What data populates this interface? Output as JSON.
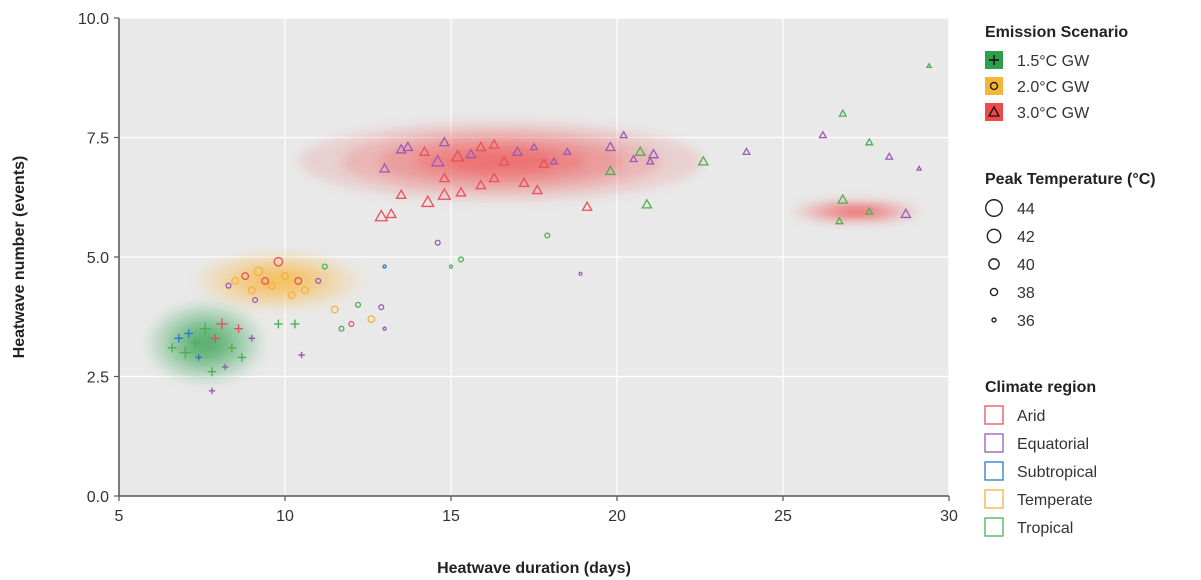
{
  "chart_data": {
    "type": "scatter",
    "xlabel": "Heatwave duration (days)",
    "ylabel": "Heatwave number (events)",
    "xlim": [
      5,
      30
    ],
    "ylim": [
      0,
      10
    ],
    "x_ticks": [
      "5",
      "10",
      "15",
      "20",
      "25",
      "30"
    ],
    "y_ticks": [
      "0.0",
      "2.5",
      "5.0",
      "7.5",
      "10.0"
    ],
    "x_tick_values": [
      5,
      10,
      15,
      20,
      25,
      30
    ],
    "y_tick_values": [
      0,
      2.5,
      5,
      7.5,
      10
    ],
    "grid": true,
    "legend": {
      "scenario_title": "Emission Scenario",
      "scenarios": [
        {
          "label": "1.5°C GW",
          "marker": "plus",
          "color": "#2e9e4a"
        },
        {
          "label": "2.0°C GW",
          "marker": "circle",
          "color": "#f7b538"
        },
        {
          "label": "3.0°C GW",
          "marker": "triangle",
          "color": "#ef4b4b"
        }
      ],
      "size_title": "Peak Temperature (°C)",
      "sizes": [
        {
          "label": "44",
          "value": 44
        },
        {
          "label": "42",
          "value": 42
        },
        {
          "label": "40",
          "value": 40
        },
        {
          "label": "38",
          "value": 38
        },
        {
          "label": "36",
          "value": 36
        }
      ],
      "region_title": "Climate region",
      "regions": [
        {
          "label": "Arid",
          "color": "#e8505b"
        },
        {
          "label": "Equatorial",
          "color": "#9b59b6"
        },
        {
          "label": "Subtropical",
          "color": "#2e7bbf"
        },
        {
          "label": "Temperate",
          "color": "#f5b041"
        },
        {
          "label": "Tropical",
          "color": "#4caf50"
        }
      ]
    },
    "density": [
      {
        "scenario": "1.5°C GW",
        "color": "#2e9e4a",
        "center": [
          7.6,
          3.2
        ],
        "spread": [
          0.9,
          0.35
        ]
      },
      {
        "scenario": "2.0°C GW",
        "color": "#f7b538",
        "center": [
          9.8,
          4.5
        ],
        "spread": [
          1.3,
          0.25
        ]
      },
      {
        "scenario": "3.0°C GW",
        "color": "#ef4b4b",
        "center": [
          16.5,
          7.0
        ],
        "spread": [
          3.2,
          0.35
        ]
      },
      {
        "scenario": "3.0°C GW",
        "color": "#ef4b4b",
        "center": [
          27.2,
          5.95
        ],
        "spread": [
          1.0,
          0.1
        ]
      }
    ],
    "points": [
      {
        "x": 6.6,
        "y": 3.1,
        "scenario": "1.5°C GW",
        "region": "Tropical",
        "temp": 40
      },
      {
        "x": 6.8,
        "y": 3.3,
        "scenario": "1.5°C GW",
        "region": "Subtropical",
        "temp": 40
      },
      {
        "x": 7.0,
        "y": 3.0,
        "scenario": "1.5°C GW",
        "region": "Tropical",
        "temp": 42
      },
      {
        "x": 7.1,
        "y": 3.4,
        "scenario": "1.5°C GW",
        "region": "Subtropical",
        "temp": 40
      },
      {
        "x": 7.3,
        "y": 3.2,
        "scenario": "1.5°C GW",
        "region": "Tropical",
        "temp": 40
      },
      {
        "x": 7.4,
        "y": 2.9,
        "scenario": "1.5°C GW",
        "region": "Subtropical",
        "temp": 38
      },
      {
        "x": 7.6,
        "y": 3.5,
        "scenario": "1.5°C GW",
        "region": "Tropical",
        "temp": 42
      },
      {
        "x": 7.8,
        "y": 2.6,
        "scenario": "1.5°C GW",
        "region": "Tropical",
        "temp": 40
      },
      {
        "x": 7.9,
        "y": 3.3,
        "scenario": "1.5°C GW",
        "region": "Arid",
        "temp": 40
      },
      {
        "x": 8.1,
        "y": 3.6,
        "scenario": "1.5°C GW",
        "region": "Arid",
        "temp": 42
      },
      {
        "x": 8.2,
        "y": 2.7,
        "scenario": "1.5°C GW",
        "region": "Equatorial",
        "temp": 38
      },
      {
        "x": 8.4,
        "y": 3.1,
        "scenario": "1.5°C GW",
        "region": "Tropical",
        "temp": 40
      },
      {
        "x": 8.6,
        "y": 3.5,
        "scenario": "1.5°C GW",
        "region": "Arid",
        "temp": 40
      },
      {
        "x": 8.7,
        "y": 2.9,
        "scenario": "1.5°C GW",
        "region": "Tropical",
        "temp": 40
      },
      {
        "x": 7.8,
        "y": 2.2,
        "scenario": "1.5°C GW",
        "region": "Equatorial",
        "temp": 38
      },
      {
        "x": 9.0,
        "y": 3.3,
        "scenario": "1.5°C GW",
        "region": "Equatorial",
        "temp": 38
      },
      {
        "x": 9.8,
        "y": 3.6,
        "scenario": "1.5°C GW",
        "region": "Tropical",
        "temp": 40
      },
      {
        "x": 10.3,
        "y": 3.6,
        "scenario": "1.5°C GW",
        "region": "Tropical",
        "temp": 40
      },
      {
        "x": 10.5,
        "y": 2.95,
        "scenario": "1.5°C GW",
        "region": "Equatorial",
        "temp": 38
      },
      {
        "x": 8.5,
        "y": 4.5,
        "scenario": "2.0°C GW",
        "region": "Temperate",
        "temp": 40
      },
      {
        "x": 8.8,
        "y": 4.6,
        "scenario": "2.0°C GW",
        "region": "Arid",
        "temp": 40
      },
      {
        "x": 9.0,
        "y": 4.3,
        "scenario": "2.0°C GW",
        "region": "Temperate",
        "temp": 40
      },
      {
        "x": 9.2,
        "y": 4.7,
        "scenario": "2.0°C GW",
        "region": "Temperate",
        "temp": 42
      },
      {
        "x": 9.4,
        "y": 4.5,
        "scenario": "2.0°C GW",
        "region": "Arid",
        "temp": 40
      },
      {
        "x": 9.6,
        "y": 4.4,
        "scenario": "2.0°C GW",
        "region": "Temperate",
        "temp": 40
      },
      {
        "x": 9.8,
        "y": 4.9,
        "scenario": "2.0°C GW",
        "region": "Arid",
        "temp": 42
      },
      {
        "x": 10.0,
        "y": 4.6,
        "scenario": "2.0°C GW",
        "region": "Temperate",
        "temp": 40
      },
      {
        "x": 10.2,
        "y": 4.2,
        "scenario": "2.0°C GW",
        "region": "Temperate",
        "temp": 40
      },
      {
        "x": 10.4,
        "y": 4.5,
        "scenario": "2.0°C GW",
        "region": "Arid",
        "temp": 40
      },
      {
        "x": 10.6,
        "y": 4.3,
        "scenario": "2.0°C GW",
        "region": "Temperate",
        "temp": 40
      },
      {
        "x": 8.3,
        "y": 4.4,
        "scenario": "2.0°C GW",
        "region": "Equatorial",
        "temp": 38
      },
      {
        "x": 9.1,
        "y": 4.1,
        "scenario": "2.0°C GW",
        "region": "Equatorial",
        "temp": 38
      },
      {
        "x": 11.2,
        "y": 4.8,
        "scenario": "2.0°C GW",
        "region": "Tropical",
        "temp": 38
      },
      {
        "x": 11.0,
        "y": 4.5,
        "scenario": "2.0°C GW",
        "region": "Equatorial",
        "temp": 38
      },
      {
        "x": 11.5,
        "y": 3.9,
        "scenario": "2.0°C GW",
        "region": "Temperate",
        "temp": 40
      },
      {
        "x": 12.2,
        "y": 4.0,
        "scenario": "2.0°C GW",
        "region": "Tropical",
        "temp": 38
      },
      {
        "x": 12.6,
        "y": 3.7,
        "scenario": "2.0°C GW",
        "region": "Temperate",
        "temp": 40
      },
      {
        "x": 12.9,
        "y": 3.95,
        "scenario": "2.0°C GW",
        "region": "Equatorial",
        "temp": 38
      },
      {
        "x": 13.0,
        "y": 3.5,
        "scenario": "2.0°C GW",
        "region": "Equatorial",
        "temp": 36
      },
      {
        "x": 12.0,
        "y": 3.6,
        "scenario": "2.0°C GW",
        "region": "Arid",
        "temp": 38
      },
      {
        "x": 11.7,
        "y": 3.5,
        "scenario": "2.0°C GW",
        "region": "Tropical",
        "temp": 38
      },
      {
        "x": 13.0,
        "y": 4.8,
        "scenario": "2.0°C GW",
        "region": "Subtropical",
        "temp": 36
      },
      {
        "x": 14.6,
        "y": 5.3,
        "scenario": "2.0°C GW",
        "region": "Equatorial",
        "temp": 38
      },
      {
        "x": 15.0,
        "y": 4.8,
        "scenario": "2.0°C GW",
        "region": "Tropical",
        "temp": 36
      },
      {
        "x": 15.3,
        "y": 4.95,
        "scenario": "2.0°C GW",
        "region": "Tropical",
        "temp": 38
      },
      {
        "x": 17.9,
        "y": 5.45,
        "scenario": "2.0°C GW",
        "region": "Tropical",
        "temp": 38
      },
      {
        "x": 18.9,
        "y": 4.65,
        "scenario": "2.0°C GW",
        "region": "Equatorial",
        "temp": 36
      },
      {
        "x": 13.5,
        "y": 7.25,
        "scenario": "3.0°C GW",
        "region": "Equatorial",
        "temp": 40
      },
      {
        "x": 13.7,
        "y": 7.3,
        "scenario": "3.0°C GW",
        "region": "Equatorial",
        "temp": 40
      },
      {
        "x": 14.2,
        "y": 7.2,
        "scenario": "3.0°C GW",
        "region": "Arid",
        "temp": 40
      },
      {
        "x": 14.6,
        "y": 7.0,
        "scenario": "3.0°C GW",
        "region": "Equatorial",
        "temp": 42
      },
      {
        "x": 14.8,
        "y": 7.4,
        "scenario": "3.0°C GW",
        "region": "Equatorial",
        "temp": 40
      },
      {
        "x": 15.2,
        "y": 7.1,
        "scenario": "3.0°C GW",
        "region": "Arid",
        "temp": 42
      },
      {
        "x": 15.6,
        "y": 7.15,
        "scenario": "3.0°C GW",
        "region": "Equatorial",
        "temp": 40
      },
      {
        "x": 15.9,
        "y": 7.3,
        "scenario": "3.0°C GW",
        "region": "Arid",
        "temp": 40
      },
      {
        "x": 16.3,
        "y": 7.35,
        "scenario": "3.0°C GW",
        "region": "Arid",
        "temp": 40
      },
      {
        "x": 16.6,
        "y": 7.0,
        "scenario": "3.0°C GW",
        "region": "Arid",
        "temp": 40
      },
      {
        "x": 17.0,
        "y": 7.2,
        "scenario": "3.0°C GW",
        "region": "Equatorial",
        "temp": 40
      },
      {
        "x": 17.5,
        "y": 7.3,
        "scenario": "3.0°C GW",
        "region": "Equatorial",
        "temp": 38
      },
      {
        "x": 17.8,
        "y": 6.95,
        "scenario": "3.0°C GW",
        "region": "Arid",
        "temp": 40
      },
      {
        "x": 18.1,
        "y": 7.0,
        "scenario": "3.0°C GW",
        "region": "Equatorial",
        "temp": 38
      },
      {
        "x": 18.5,
        "y": 7.2,
        "scenario": "3.0°C GW",
        "region": "Equatorial",
        "temp": 38
      },
      {
        "x": 19.8,
        "y": 7.3,
        "scenario": "3.0°C GW",
        "region": "Equatorial",
        "temp": 40
      },
      {
        "x": 20.2,
        "y": 7.55,
        "scenario": "3.0°C GW",
        "region": "Equatorial",
        "temp": 38
      },
      {
        "x": 20.5,
        "y": 7.05,
        "scenario": "3.0°C GW",
        "region": "Equatorial",
        "temp": 38
      },
      {
        "x": 20.7,
        "y": 7.2,
        "scenario": "3.0°C GW",
        "region": "Tropical",
        "temp": 40
      },
      {
        "x": 21.1,
        "y": 7.15,
        "scenario": "3.0°C GW",
        "region": "Equatorial",
        "temp": 40
      },
      {
        "x": 21.0,
        "y": 7.0,
        "scenario": "3.0°C GW",
        "region": "Equatorial",
        "temp": 38
      },
      {
        "x": 22.6,
        "y": 7.0,
        "scenario": "3.0°C GW",
        "region": "Tropical",
        "temp": 40
      },
      {
        "x": 23.9,
        "y": 7.2,
        "scenario": "3.0°C GW",
        "region": "Equatorial",
        "temp": 38
      },
      {
        "x": 13.0,
        "y": 6.85,
        "scenario": "3.0°C GW",
        "region": "Equatorial",
        "temp": 40
      },
      {
        "x": 12.9,
        "y": 5.85,
        "scenario": "3.0°C GW",
        "region": "Arid",
        "temp": 42
      },
      {
        "x": 13.2,
        "y": 5.9,
        "scenario": "3.0°C GW",
        "region": "Arid",
        "temp": 40
      },
      {
        "x": 13.5,
        "y": 6.3,
        "scenario": "3.0°C GW",
        "region": "Arid",
        "temp": 40
      },
      {
        "x": 14.3,
        "y": 6.15,
        "scenario": "3.0°C GW",
        "region": "Arid",
        "temp": 42
      },
      {
        "x": 14.8,
        "y": 6.3,
        "scenario": "3.0°C GW",
        "region": "Arid",
        "temp": 42
      },
      {
        "x": 15.3,
        "y": 6.35,
        "scenario": "3.0°C GW",
        "region": "Arid",
        "temp": 40
      },
      {
        "x": 14.8,
        "y": 6.65,
        "scenario": "3.0°C GW",
        "region": "Arid",
        "temp": 40
      },
      {
        "x": 15.9,
        "y": 6.5,
        "scenario": "3.0°C GW",
        "region": "Arid",
        "temp": 40
      },
      {
        "x": 16.3,
        "y": 6.65,
        "scenario": "3.0°C GW",
        "region": "Arid",
        "temp": 40
      },
      {
        "x": 17.2,
        "y": 6.55,
        "scenario": "3.0°C GW",
        "region": "Arid",
        "temp": 40
      },
      {
        "x": 17.6,
        "y": 6.4,
        "scenario": "3.0°C GW",
        "region": "Arid",
        "temp": 40
      },
      {
        "x": 19.1,
        "y": 6.05,
        "scenario": "3.0°C GW",
        "region": "Arid",
        "temp": 40
      },
      {
        "x": 19.8,
        "y": 6.8,
        "scenario": "3.0°C GW",
        "region": "Tropical",
        "temp": 40
      },
      {
        "x": 20.9,
        "y": 6.1,
        "scenario": "3.0°C GW",
        "region": "Tropical",
        "temp": 40
      },
      {
        "x": 26.2,
        "y": 7.55,
        "scenario": "3.0°C GW",
        "region": "Equatorial",
        "temp": 38
      },
      {
        "x": 26.8,
        "y": 8.0,
        "scenario": "3.0°C GW",
        "region": "Tropical",
        "temp": 38
      },
      {
        "x": 27.6,
        "y": 7.4,
        "scenario": "3.0°C GW",
        "region": "Tropical",
        "temp": 38
      },
      {
        "x": 28.2,
        "y": 7.1,
        "scenario": "3.0°C GW",
        "region": "Equatorial",
        "temp": 38
      },
      {
        "x": 29.1,
        "y": 6.85,
        "scenario": "3.0°C GW",
        "region": "Equatorial",
        "temp": 36
      },
      {
        "x": 29.4,
        "y": 9.0,
        "scenario": "3.0°C GW",
        "region": "Tropical",
        "temp": 36
      },
      {
        "x": 26.8,
        "y": 6.2,
        "scenario": "3.0°C GW",
        "region": "Tropical",
        "temp": 40
      },
      {
        "x": 26.7,
        "y": 5.75,
        "scenario": "3.0°C GW",
        "region": "Tropical",
        "temp": 38
      },
      {
        "x": 27.6,
        "y": 5.95,
        "scenario": "3.0°C GW",
        "region": "Tropical",
        "temp": 38
      },
      {
        "x": 28.7,
        "y": 5.9,
        "scenario": "3.0°C GW",
        "region": "Equatorial",
        "temp": 40
      }
    ]
  }
}
